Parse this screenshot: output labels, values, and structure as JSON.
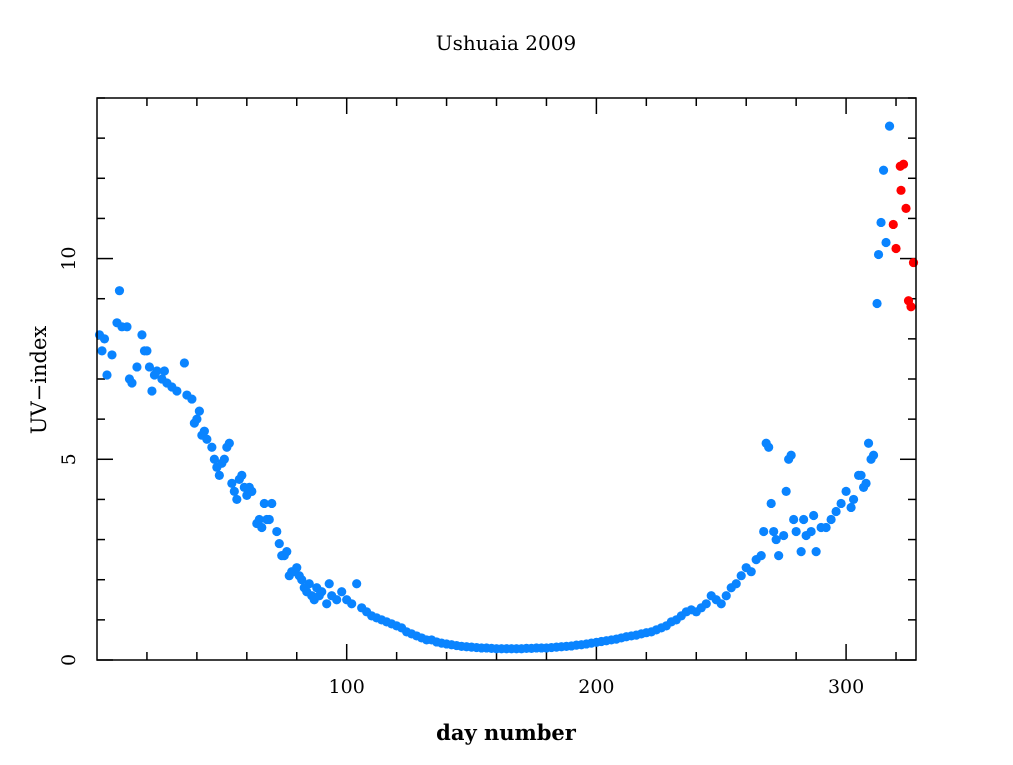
{
  "chart_data": {
    "type": "scatter",
    "title": "Ushuaia 2009",
    "xlabel": "day number",
    "ylabel": "UV−index",
    "xlim": [
      0,
      328
    ],
    "ylim": [
      0,
      14
    ],
    "xticks": [
      100,
      200,
      300
    ],
    "xtick_labels": [
      "100",
      "200",
      "300"
    ],
    "xminor_step": 20,
    "yticks": [
      0,
      5,
      10
    ],
    "ytick_labels": [
      "0",
      "5",
      "10"
    ],
    "yminor_step": 1,
    "grid": false,
    "series": [
      {
        "name": "blue",
        "color": "#0a84ff",
        "x": [
          1,
          2,
          3,
          4,
          6,
          8,
          9,
          10,
          12,
          13,
          14,
          16,
          18,
          19,
          20,
          21,
          22,
          23,
          24,
          26,
          27,
          28,
          30,
          32,
          35,
          36,
          38,
          39,
          40,
          41,
          42,
          43,
          44,
          46,
          47,
          48,
          49,
          50,
          51,
          52,
          53,
          54,
          55,
          56,
          57,
          58,
          59,
          60,
          61,
          62,
          64,
          65,
          66,
          67,
          68,
          69,
          70,
          72,
          73,
          74,
          75,
          76,
          77,
          78,
          79,
          80,
          81,
          82,
          83,
          84,
          85,
          86,
          87,
          88,
          89,
          90,
          92,
          93,
          94,
          96,
          98,
          100,
          102,
          104,
          106,
          108,
          110,
          112,
          114,
          116,
          118,
          120,
          122,
          124,
          126,
          128,
          130,
          132,
          134,
          136,
          138,
          140,
          142,
          144,
          146,
          148,
          150,
          152,
          154,
          156,
          158,
          160,
          162,
          164,
          166,
          168,
          170,
          172,
          174,
          176,
          178,
          180,
          182,
          184,
          186,
          188,
          190,
          192,
          194,
          196,
          198,
          200,
          202,
          204,
          206,
          208,
          210,
          212,
          214,
          216,
          218,
          220,
          222,
          224,
          226,
          228,
          230,
          232,
          234,
          236,
          238,
          240,
          242,
          244,
          246,
          248,
          250,
          252,
          254,
          256,
          258,
          260,
          262,
          264,
          266,
          267,
          268,
          269,
          270,
          271,
          272,
          273,
          275,
          276,
          277,
          278,
          279,
          280,
          282,
          283,
          284,
          286,
          287,
          288,
          290,
          292,
          294,
          296,
          298,
          300,
          302,
          303,
          305,
          306,
          307,
          308,
          309,
          310,
          311,
          312.4,
          313,
          314,
          315,
          316,
          317.4
        ],
        "y": [
          8.1,
          7.7,
          8.0,
          7.1,
          7.6,
          8.4,
          9.2,
          8.3,
          8.3,
          7.0,
          6.9,
          7.3,
          8.1,
          7.7,
          7.7,
          7.3,
          6.7,
          7.1,
          7.2,
          7.0,
          7.2,
          6.9,
          6.8,
          6.7,
          7.4,
          6.6,
          6.5,
          5.9,
          6.0,
          6.2,
          5.6,
          5.7,
          5.5,
          5.3,
          5.0,
          4.8,
          4.6,
          4.9,
          5.0,
          5.3,
          5.4,
          4.4,
          4.2,
          4.0,
          4.5,
          4.6,
          4.3,
          4.1,
          4.3,
          4.2,
          3.4,
          3.5,
          3.3,
          3.9,
          3.5,
          3.5,
          3.9,
          3.2,
          2.9,
          2.6,
          2.6,
          2.7,
          2.1,
          2.2,
          2.2,
          2.3,
          2.1,
          2.0,
          1.8,
          1.7,
          1.9,
          1.6,
          1.5,
          1.8,
          1.6,
          1.7,
          1.4,
          1.9,
          1.6,
          1.5,
          1.7,
          1.5,
          1.4,
          1.9,
          1.3,
          1.2,
          1.1,
          1.05,
          1.0,
          0.95,
          0.9,
          0.85,
          0.8,
          0.7,
          0.65,
          0.6,
          0.55,
          0.5,
          0.5,
          0.45,
          0.42,
          0.4,
          0.38,
          0.36,
          0.34,
          0.33,
          0.32,
          0.31,
          0.3,
          0.3,
          0.29,
          0.28,
          0.28,
          0.28,
          0.28,
          0.28,
          0.28,
          0.29,
          0.29,
          0.3,
          0.3,
          0.3,
          0.31,
          0.32,
          0.33,
          0.34,
          0.35,
          0.37,
          0.38,
          0.4,
          0.42,
          0.44,
          0.46,
          0.48,
          0.5,
          0.52,
          0.55,
          0.58,
          0.6,
          0.62,
          0.65,
          0.68,
          0.7,
          0.75,
          0.8,
          0.85,
          0.95,
          1.0,
          1.1,
          1.2,
          1.25,
          1.2,
          1.3,
          1.4,
          1.6,
          1.5,
          1.4,
          1.6,
          1.8,
          1.9,
          2.1,
          2.3,
          2.2,
          2.5,
          2.6,
          3.2,
          5.4,
          5.3,
          3.9,
          3.2,
          3.0,
          2.6,
          3.1,
          4.2,
          5.0,
          5.1,
          3.5,
          3.2,
          2.7,
          3.5,
          3.1,
          3.2,
          3.6,
          2.7,
          3.3,
          3.3,
          3.5,
          3.7,
          3.9,
          4.2,
          3.8,
          4.0,
          4.6,
          4.6,
          4.3,
          4.4,
          5.4,
          5.0,
          5.1,
          8.88,
          10.1,
          10.9,
          12.2,
          10.4,
          13.3
        ]
      },
      {
        "name": "red",
        "color": "#ff0000",
        "x": [
          318.9,
          320,
          321.7,
          323,
          322,
          324,
          325,
          326,
          327
        ],
        "y": [
          10.85,
          10.25,
          12.3,
          12.35,
          11.7,
          11.25,
          8.95,
          8.8,
          9.9
        ]
      }
    ]
  }
}
